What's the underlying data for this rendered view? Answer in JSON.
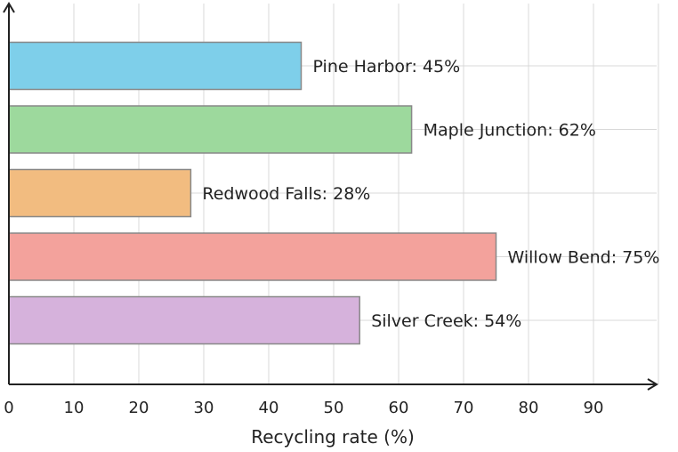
{
  "chart_data": {
    "type": "bar",
    "orientation": "horizontal",
    "categories": [
      "Pine Harbor",
      "Maple Junction",
      "Redwood Falls",
      "Willow Bend",
      "Silver Creek"
    ],
    "values": [
      45,
      62,
      28,
      75,
      54
    ],
    "data_labels": [
      "Pine Harbor: 45%",
      "Maple Junction: 62%",
      "Redwood Falls: 28%",
      "Willow Bend: 75%",
      "Silver Creek: 54%"
    ],
    "colors": [
      "#7ecfea",
      "#9dd99d",
      "#f2bc80",
      "#f3a29c",
      "#d6b2dc"
    ],
    "title": "",
    "xlabel": "Recycling rate (%)",
    "ylabel": "",
    "xlim": [
      0,
      100
    ],
    "xticks": [
      0,
      10,
      20,
      30,
      40,
      50,
      60,
      70,
      80,
      90
    ],
    "grid": true
  }
}
